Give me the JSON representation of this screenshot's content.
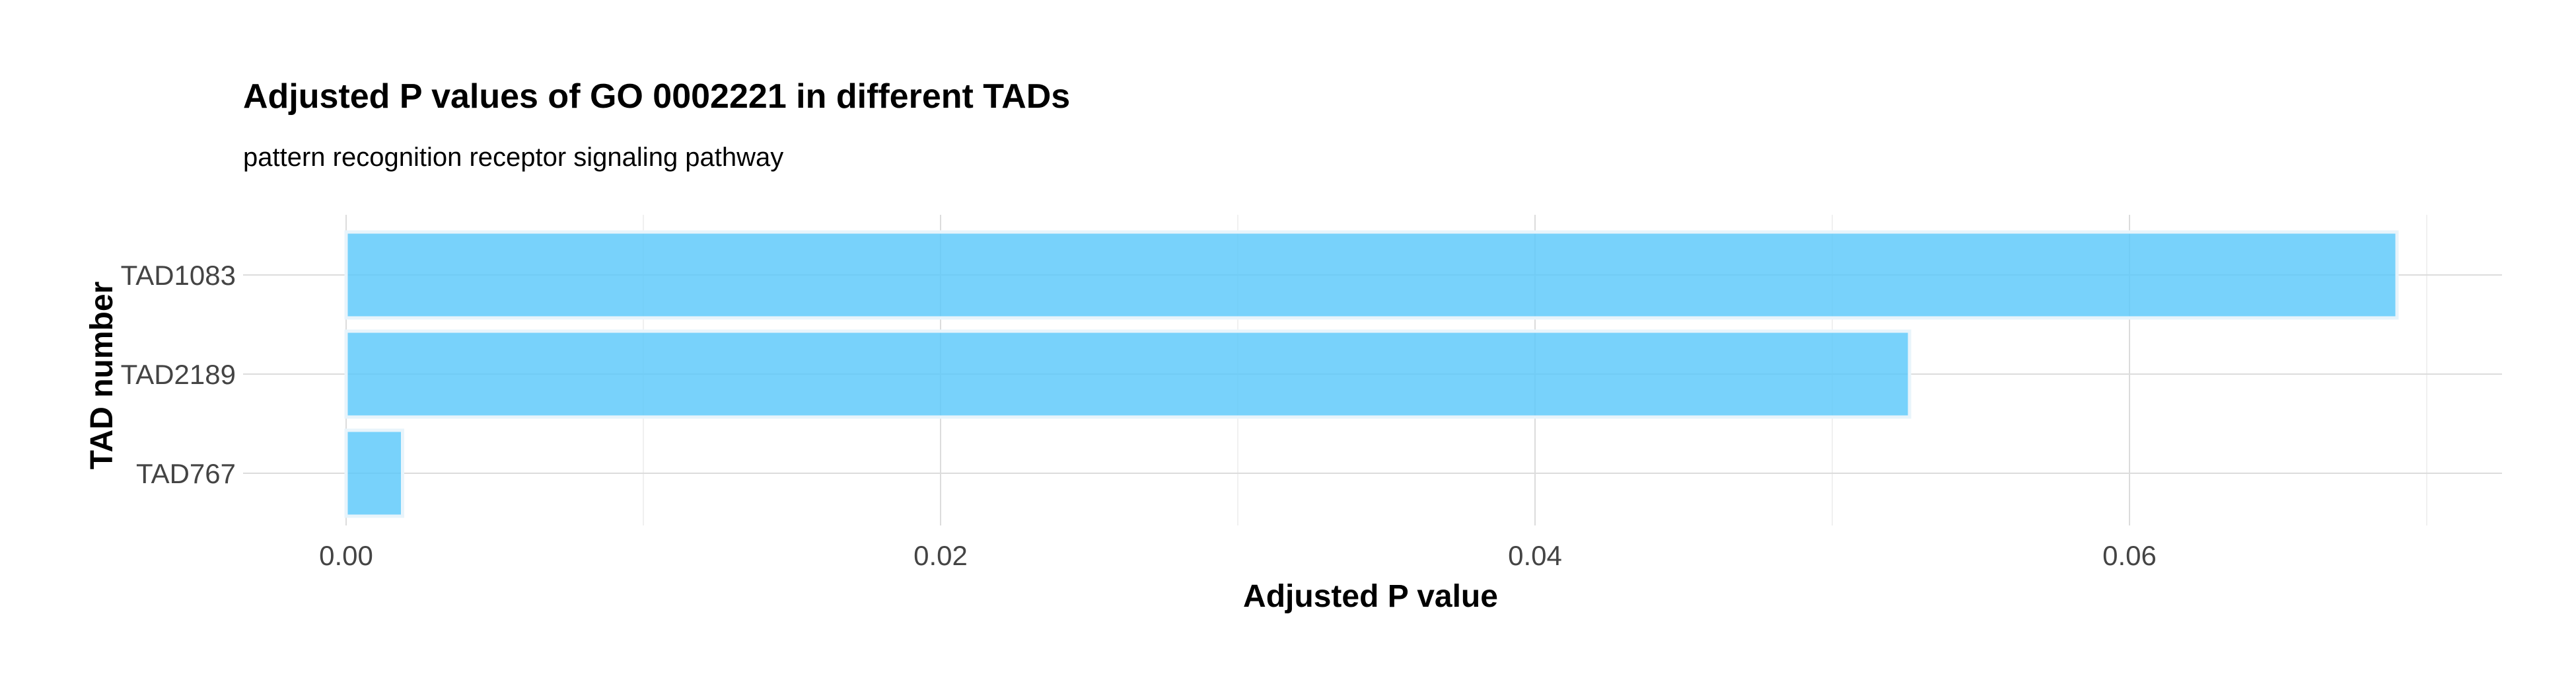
{
  "chart_data": {
    "type": "bar",
    "orientation": "horizontal",
    "title": "Adjusted P values of GO 0002221 in different TADs",
    "subtitle": "pattern recognition receptor signaling pathway",
    "xlabel": "Adjusted P value",
    "ylabel": "TAD number",
    "categories": [
      "TAD1083",
      "TAD2189",
      "TAD767"
    ],
    "values": [
      0.069,
      0.0526,
      0.0019
    ],
    "xlim": [
      0,
      0.0725
    ],
    "xticks": [
      0.0,
      0.02,
      0.04,
      0.06
    ],
    "xtick_labels": [
      "0.00",
      "0.02",
      "0.04",
      "0.06"
    ],
    "grid": true,
    "legend": "none",
    "colors": {
      "bar_fill": "#5ac8fa",
      "bar_outline": "#e8f4fb",
      "grid_major": "#dcdcdc",
      "grid_minor": "#ebebeb",
      "tick_text": "#444444",
      "title_text": "#000000"
    }
  }
}
